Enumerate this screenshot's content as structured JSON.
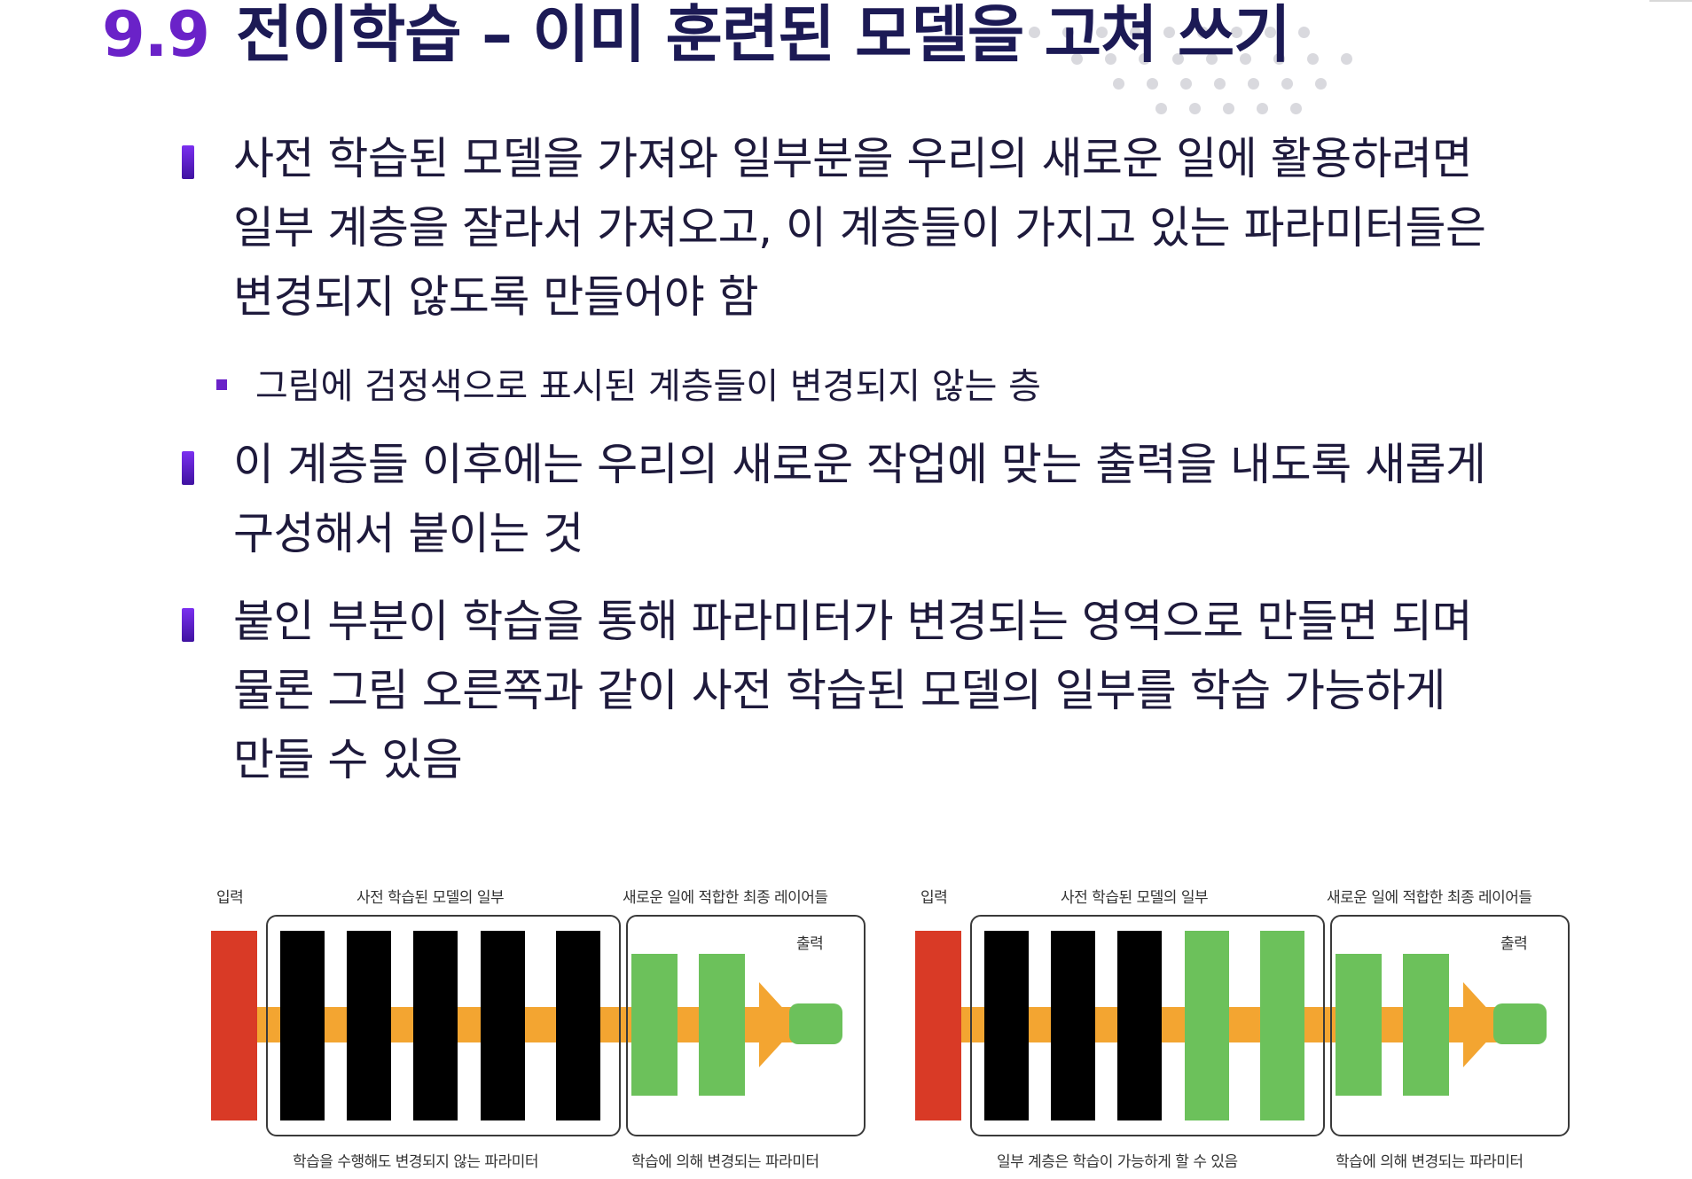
{
  "title": {
    "number": "9.9",
    "text": "전이학습 – 이미 훈련된 모델을 고쳐 쓰기"
  },
  "bullets": [
    {
      "level": 1,
      "lines": [
        "사전 학습된 모델을 가져와 일부분을 우리의 새로운 일에 활용하려면",
        "일부 계층을 잘라서 가져오고, 이 계층들이 가지고 있는 파라미터들은",
        "변경되지 않도록 만들어야 함"
      ]
    },
    {
      "level": 2,
      "lines": [
        "그림에 검정색으로 표시된 계층들이 변경되지 않는 층"
      ]
    },
    {
      "level": 1,
      "lines": [
        "이 계층들 이후에는 우리의 새로운 작업에 맞는 출력을 내도록 새롭게",
        "구성해서 붙이는 것"
      ]
    },
    {
      "level": 1,
      "lines": [
        "붙인 부분이 학습을 통해 파라미터가 변경되는 영역으로 만들면 되며",
        "물론 그림 오른쪽과 같이 사전 학습된 모델의 일부를 학습 가능하게",
        "만들 수 있음"
      ]
    }
  ],
  "figures": [
    {
      "label_input": "입력",
      "label_pretrained": "사전 학습된 모델의 일부",
      "label_new_layers": "새로운 일에 적합한 최종 레이어들",
      "label_output": "출력",
      "label_bottom_left": "학습을 수행해도 변경되지 않는 파라미터",
      "label_bottom_right": "학습에 의해 변경되는 파라미터",
      "pretrained_layers": [
        "frozen",
        "frozen",
        "frozen",
        "frozen",
        "frozen"
      ]
    },
    {
      "label_input": "입력",
      "label_pretrained": "사전 학습된 모델의 일부",
      "label_new_layers": "새로운 일에 적합한 최종 레이어들",
      "label_output": "출력",
      "label_bottom_left": "일부 계층은 학습이 가능하게 할 수 있음",
      "label_bottom_right": "학습에 의해 변경되는 파라미터",
      "pretrained_layers": [
        "frozen",
        "frozen",
        "frozen",
        "trainable",
        "trainable"
      ]
    }
  ],
  "colors": {
    "title_number": "#6a22c8",
    "title_text": "#1c1a55",
    "input_layer": "#d93a26",
    "frozen_layer": "#000000",
    "trainable_layer": "#6cc15b",
    "flow_arrow": "#f3a531"
  }
}
